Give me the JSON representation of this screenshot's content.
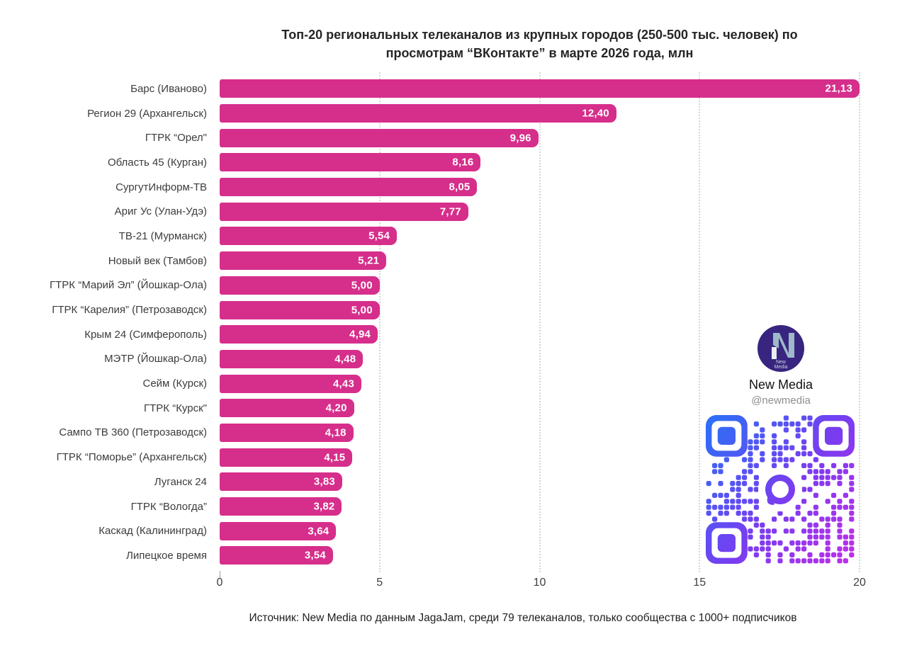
{
  "title": "Топ-20 региональных телеканалов из крупных городов (250-500 тыс. человек) по просмотрам “ВКонтакте” в марте 2026 года, млн",
  "footer": "Источник: New Media по данным JagaJam, среди 79 телеканалов, только сообщества с 1000+ подписчиков",
  "branding": {
    "name": "New Media",
    "handle": "@newmedia",
    "logo_caption": "New Media"
  },
  "colors": {
    "bar": "#d62e8b",
    "grid": "#d6d6d6",
    "logo_background": "#38257f",
    "logo_glyph": "#9fb9cb",
    "qr_gradient_start": "#2f6ef6",
    "qr_gradient_mid": "#7a3cf0",
    "qr_gradient_end": "#bb2fea"
  },
  "chart_data": {
    "type": "bar",
    "orientation": "horizontal",
    "title": "Топ-20 региональных телеканалов из крупных городов (250-500 тыс. человек) по просмотрам “ВКонтакте” в марте 2026 года, млн",
    "categories": [
      "Барс (Иваново)",
      "Регион 29 (Архангельск)",
      "ГТРК “Орел\"",
      "Область 45 (Курган)",
      "СургутИнформ-ТВ",
      "Ариг Ус (Улан-Удэ)",
      "ТВ-21 (Мурманск)",
      "Новый век (Тамбов)",
      "ГТРК “Марий Эл” (Йошкар-Ола)",
      "ГТРК “Карелия” (Петрозаводск)",
      "Крым 24 (Симферополь)",
      "МЭТР (Йошкар-Ола)",
      "Сейм (Курск)",
      "ГТРК “Курск\"",
      "Сампо ТВ 360 (Петрозаводск)",
      "ГТРК “Поморье” (Архангельск)",
      "Луганск 24",
      "ГТРК “Вологда”",
      "Каскад (Калининград)",
      "Липецкое время"
    ],
    "values": [
      21.13,
      12.4,
      9.96,
      8.16,
      8.05,
      7.77,
      5.54,
      5.21,
      5.0,
      5.0,
      4.94,
      4.48,
      4.43,
      4.2,
      4.18,
      4.15,
      3.83,
      3.82,
      3.64,
      3.54
    ],
    "value_labels": [
      "21,13",
      "12,40",
      "9,96",
      "8,16",
      "8,05",
      "7,77",
      "5,54",
      "5,21",
      "5,00",
      "5,00",
      "4,94",
      "4,48",
      "4,43",
      "4,20",
      "4,18",
      "4,15",
      "3,83",
      "3,82",
      "3,64",
      "3,54"
    ],
    "xlim": [
      0,
      20
    ],
    "x_ticks": [
      0,
      5,
      10,
      15,
      20
    ],
    "xlabel": "",
    "ylabel": "",
    "grid": "vertical-dotted",
    "legend": "none",
    "value_label_position": "inside-end"
  }
}
